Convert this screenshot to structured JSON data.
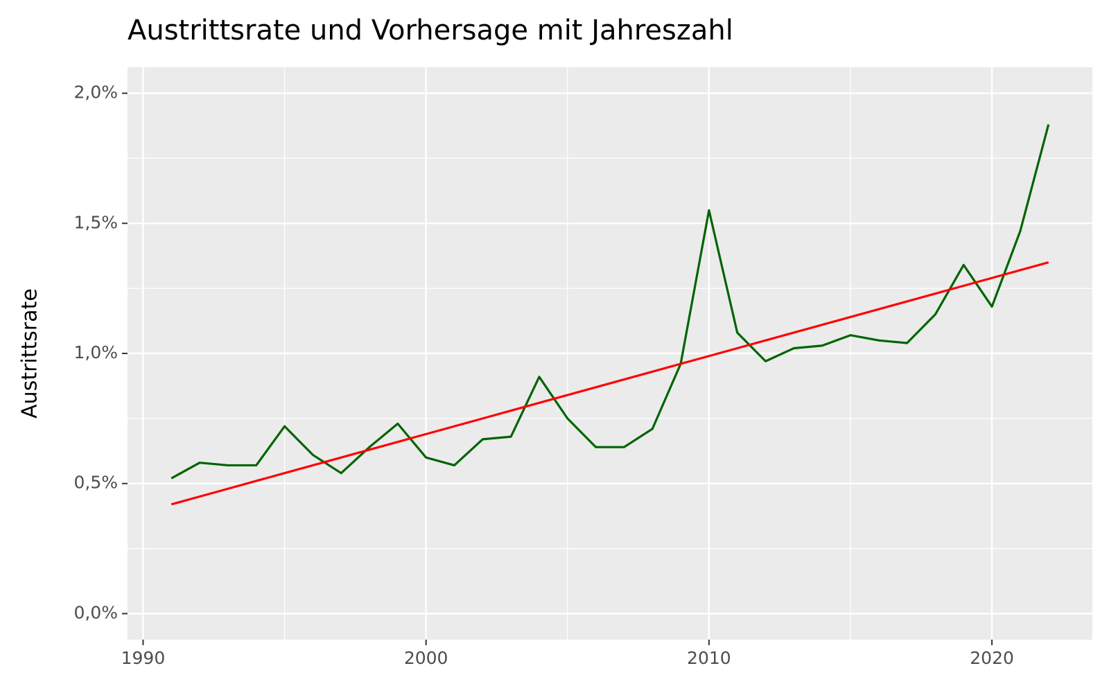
{
  "chart_data": {
    "type": "line",
    "title": "Austrittsrate und Vorhersage mit Jahreszahl",
    "y_label": "Austrittsrate",
    "x": [
      1991,
      1992,
      1993,
      1994,
      1995,
      1996,
      1997,
      1998,
      1999,
      2000,
      2001,
      2002,
      2003,
      2004,
      2005,
      2006,
      2007,
      2008,
      2009,
      2010,
      2011,
      2012,
      2013,
      2014,
      2015,
      2016,
      2017,
      2018,
      2019,
      2020,
      2021,
      2022
    ],
    "series": [
      {
        "color": "#006400",
        "values": [
          0.52,
          0.58,
          0.57,
          0.57,
          0.72,
          0.61,
          0.54,
          0.64,
          0.73,
          0.6,
          0.57,
          0.67,
          0.68,
          0.91,
          0.75,
          0.64,
          0.64,
          0.71,
          0.96,
          1.55,
          1.08,
          0.97,
          1.02,
          1.03,
          1.07,
          1.05,
          1.04,
          1.15,
          1.34,
          1.18,
          1.47,
          1.88
        ]
      },
      {
        "color": "#ff0000",
        "values": [
          0.42,
          0.45,
          0.48,
          0.51,
          0.54,
          0.57,
          0.6,
          0.63,
          0.66,
          0.69,
          0.72,
          0.75,
          0.78,
          0.81,
          0.84,
          0.87,
          0.9,
          0.93,
          0.96,
          0.99,
          1.02,
          1.05,
          1.08,
          1.11,
          1.14,
          1.17,
          1.2,
          1.23,
          1.26,
          1.29,
          1.32,
          1.35
        ]
      }
    ],
    "xlim": [
      1989.45,
      2023.55
    ],
    "xticks": [
      1990,
      2000,
      2010,
      2020
    ],
    "ylim": [
      -0.1,
      2.1
    ],
    "yticks": [
      {
        "value": 0,
        "label": "0,0%"
      },
      {
        "value": 0.5,
        "label": "0,5%"
      },
      {
        "value": 1,
        "label": "1,0%"
      },
      {
        "value": 1.5,
        "label": "1,5%"
      },
      {
        "value": 2,
        "label": "2,0%"
      }
    ],
    "grid": true,
    "minor_grid": true
  }
}
